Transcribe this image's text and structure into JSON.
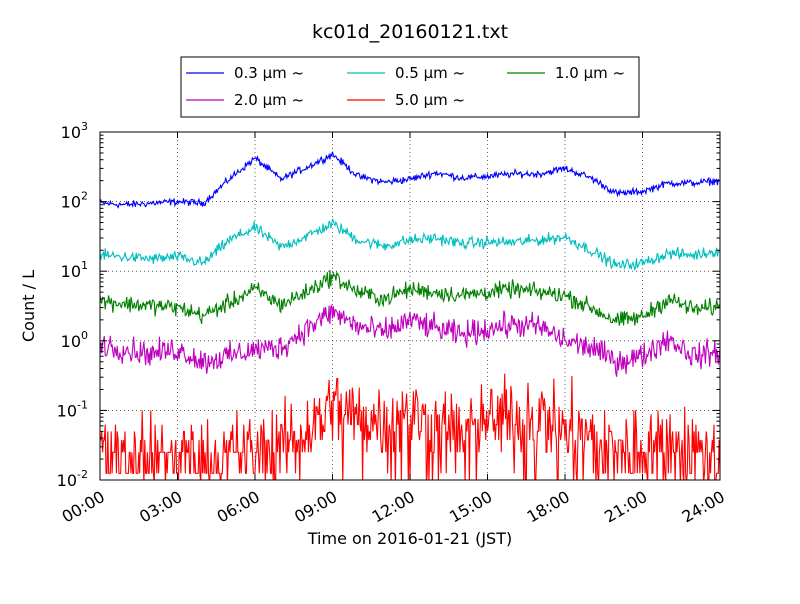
{
  "chart_data": {
    "type": "line",
    "title": "kc01d_20160121.txt",
    "xlabel": "Time on 2016-01-21 (JST)",
    "ylabel": "Count / L",
    "yscale": "log",
    "ylim": [
      0.01,
      1000
    ],
    "xlim": [
      "00:00",
      "24:00"
    ],
    "grid": true,
    "legend_position": "top-center",
    "x_ticks": [
      "00:00",
      "03:00",
      "06:00",
      "09:00",
      "12:00",
      "15:00",
      "18:00",
      "21:00",
      "24:00"
    ],
    "y_ticks": [
      {
        "value": 0.01,
        "base": "10",
        "exp": "-2"
      },
      {
        "value": 0.1,
        "base": "10",
        "exp": "-1"
      },
      {
        "value": 1,
        "base": "10",
        "exp": "0"
      },
      {
        "value": 10,
        "base": "10",
        "exp": "1"
      },
      {
        "value": 100,
        "base": "10",
        "exp": "2"
      },
      {
        "value": 1000,
        "base": "10",
        "exp": "3"
      }
    ],
    "x": [
      "00:00",
      "01:00",
      "02:00",
      "03:00",
      "04:00",
      "05:00",
      "06:00",
      "07:00",
      "08:00",
      "09:00",
      "10:00",
      "11:00",
      "12:00",
      "13:00",
      "14:00",
      "15:00",
      "16:00",
      "17:00",
      "18:00",
      "19:00",
      "20:00",
      "21:00",
      "22:00",
      "23:00",
      "24:00"
    ],
    "series": [
      {
        "name": "0.3 μm ~",
        "color": "#0000ff",
        "values": [
          95,
          90,
          95,
          100,
          95,
          210,
          420,
          210,
          310,
          480,
          230,
          190,
          210,
          260,
          220,
          230,
          250,
          250,
          300,
          220,
          130,
          140,
          185,
          185,
          200
        ]
      },
      {
        "name": "0.5 μm ~",
        "color": "#00bfbf",
        "values": [
          17,
          16,
          15,
          16,
          13,
          28,
          42,
          22,
          32,
          48,
          28,
          23,
          28,
          30,
          25,
          26,
          26,
          28,
          31,
          20,
          12,
          13,
          18,
          17,
          20
        ]
      },
      {
        "name": "1.0 μm ~",
        "color": "#008000",
        "values": [
          3.8,
          3.4,
          3.2,
          3.0,
          2.3,
          3.5,
          5.5,
          3.3,
          5.0,
          8.5,
          5.0,
          4.0,
          5.5,
          5.0,
          4.5,
          5.0,
          5.5,
          5.0,
          4.5,
          3.0,
          1.9,
          2.2,
          4.0,
          2.8,
          3.1
        ]
      },
      {
        "name": "2.0 μm ~",
        "color": "#bf00bf",
        "values": [
          0.9,
          0.75,
          0.65,
          0.75,
          0.5,
          0.6,
          0.75,
          0.8,
          1.5,
          2.6,
          1.6,
          1.3,
          2.0,
          1.5,
          1.2,
          1.5,
          1.7,
          1.6,
          1.0,
          0.8,
          0.5,
          0.6,
          1.1,
          0.6,
          0.7
        ]
      },
      {
        "name": "5.0 μm ~",
        "color": "#ff0000",
        "values": [
          0.03,
          0.025,
          0.02,
          0.025,
          0.02,
          0.025,
          0.025,
          0.03,
          0.05,
          0.12,
          0.08,
          0.07,
          0.09,
          0.06,
          0.05,
          0.07,
          0.08,
          0.09,
          0.06,
          0.04,
          0.025,
          0.03,
          0.04,
          0.025,
          0.03
        ]
      }
    ]
  }
}
